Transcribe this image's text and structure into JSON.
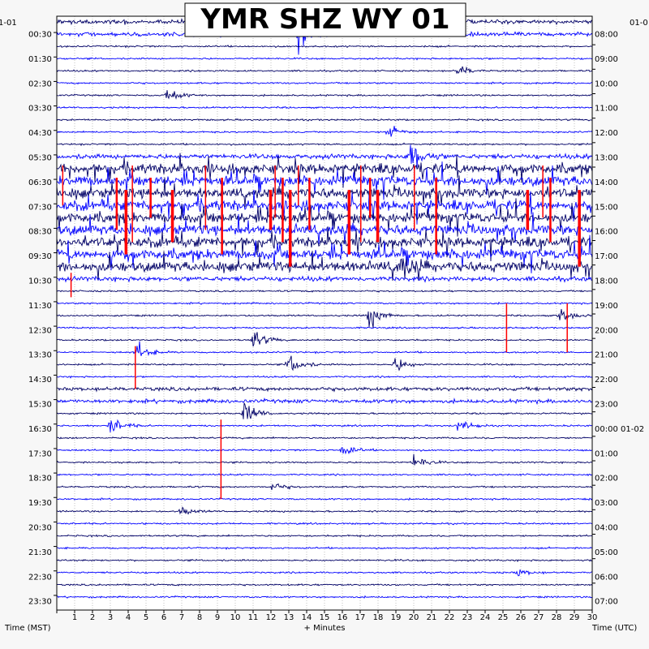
{
  "chart_data": {
    "type": "line",
    "title": "YMR SHZ WY 01",
    "xlabel": "+ Minutes",
    "ylabel_left": "Time (MST)",
    "ylabel_right": "Time (UTC)",
    "corner_left": "1-01",
    "corner_right": "01-0",
    "x_ticks": [
      "1",
      "2",
      "3",
      "4",
      "5",
      "6",
      "7",
      "8",
      "9",
      "10",
      "11",
      "12",
      "13",
      "14",
      "15",
      "16",
      "17",
      "18",
      "19",
      "20",
      "21",
      "22",
      "23",
      "24",
      "25",
      "26",
      "27",
      "28",
      "29",
      "30"
    ],
    "xlim": [
      0,
      30
    ],
    "left_labels": [
      "00:30",
      "01:30",
      "02:30",
      "03:30",
      "04:30",
      "05:30",
      "06:30",
      "07:30",
      "08:30",
      "09:30",
      "10:30",
      "11:30",
      "12:30",
      "13:30",
      "14:30",
      "15:30",
      "16:30",
      "17:30",
      "18:30",
      "19:30",
      "20:30",
      "21:30",
      "22:30",
      "23:30"
    ],
    "right_labels": [
      "08:00",
      "09:00",
      "10:00",
      "11:00",
      "12:00",
      "13:00",
      "14:00",
      "15:00",
      "16:00",
      "17:00",
      "18:00",
      "19:00",
      "20:00",
      "21:00",
      "22:00",
      "23:00",
      "00:00 01-02",
      "01:00",
      "02:00",
      "03:00",
      "04:00",
      "05:00",
      "06:00",
      "07:00"
    ],
    "trace_colors": [
      "#000066",
      "#0000ff"
    ],
    "clip_color": "#ff0000",
    "rows": 48,
    "minutes_per_row": 30,
    "noisy_rows_range": [
      12,
      20
    ],
    "events": [
      {
        "row": 1,
        "minute": 13.5,
        "amplitude": 2.5
      },
      {
        "row": 4,
        "minute": 22.5,
        "amplitude": 0.8
      },
      {
        "row": 6,
        "minute": 6.2,
        "amplitude": 0.9
      },
      {
        "row": 9,
        "minute": 18.6,
        "amplitude": 1.2
      },
      {
        "row": 11,
        "minute": 19.8,
        "amplitude": 2.5
      },
      {
        "row": 20,
        "minute": 19.2,
        "amplitude": 1.6
      },
      {
        "row": 24,
        "minute": 17.5,
        "amplitude": 1.6
      },
      {
        "row": 24,
        "minute": 28.2,
        "amplitude": 1.0
      },
      {
        "row": 26,
        "minute": 11.0,
        "amplitude": 1.3
      },
      {
        "row": 27,
        "minute": 4.5,
        "amplitude": 1.2
      },
      {
        "row": 28,
        "minute": 13.0,
        "amplitude": 1.4
      },
      {
        "row": 28,
        "minute": 19.0,
        "amplitude": 1.0
      },
      {
        "row": 32,
        "minute": 10.5,
        "amplitude": 1.6
      },
      {
        "row": 33,
        "minute": 3.0,
        "amplitude": 1.2
      },
      {
        "row": 33,
        "minute": 22.5,
        "amplitude": 0.8
      },
      {
        "row": 35,
        "minute": 16.0,
        "amplitude": 0.8
      },
      {
        "row": 36,
        "minute": 20.0,
        "amplitude": 1.0
      },
      {
        "row": 38,
        "minute": 12.0,
        "amplitude": 0.6
      },
      {
        "row": 40,
        "minute": 7.0,
        "amplitude": 0.6
      },
      {
        "row": 45,
        "minute": 25.8,
        "amplitude": 0.5
      }
    ],
    "clipped_spikes": [
      {
        "row": 27,
        "minute": 4.4,
        "up": 0.5,
        "down": 3
      },
      {
        "row": 24,
        "minute": 25.2,
        "up": 1,
        "down": 3
      },
      {
        "row": 24,
        "minute": 28.6,
        "up": 1,
        "down": 3
      },
      {
        "row": 33,
        "minute": 9.2,
        "up": 0.5,
        "down": 6
      },
      {
        "row": 22,
        "minute": 0.8,
        "up": 1.5,
        "down": 0.5
      }
    ],
    "grid": true
  }
}
